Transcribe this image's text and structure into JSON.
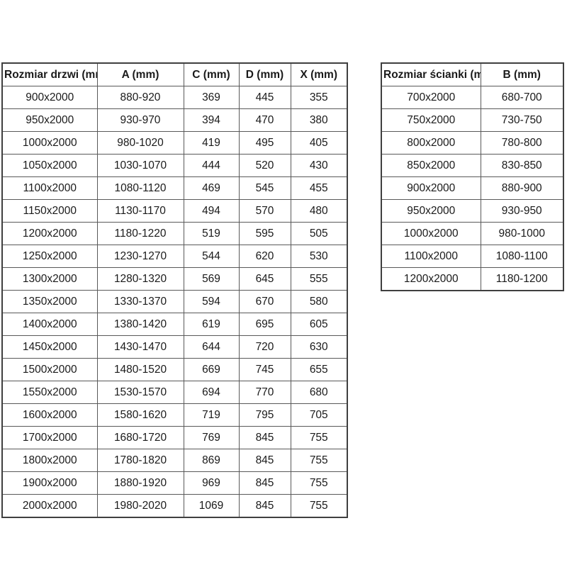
{
  "tables": {
    "doors": {
      "headers": [
        "Rozmiar drzwi (mm)",
        "A (mm)",
        "C (mm)",
        "D (mm)",
        "X (mm)"
      ],
      "rows": [
        [
          "900x2000",
          "880-920",
          "369",
          "445",
          "355"
        ],
        [
          "950x2000",
          "930-970",
          "394",
          "470",
          "380"
        ],
        [
          "1000x2000",
          "980-1020",
          "419",
          "495",
          "405"
        ],
        [
          "1050x2000",
          "1030-1070",
          "444",
          "520",
          "430"
        ],
        [
          "1100x2000",
          "1080-1120",
          "469",
          "545",
          "455"
        ],
        [
          "1150x2000",
          "1130-1170",
          "494",
          "570",
          "480"
        ],
        [
          "1200x2000",
          "1180-1220",
          "519",
          "595",
          "505"
        ],
        [
          "1250x2000",
          "1230-1270",
          "544",
          "620",
          "530"
        ],
        [
          "1300x2000",
          "1280-1320",
          "569",
          "645",
          "555"
        ],
        [
          "1350x2000",
          "1330-1370",
          "594",
          "670",
          "580"
        ],
        [
          "1400x2000",
          "1380-1420",
          "619",
          "695",
          "605"
        ],
        [
          "1450x2000",
          "1430-1470",
          "644",
          "720",
          "630"
        ],
        [
          "1500x2000",
          "1480-1520",
          "669",
          "745",
          "655"
        ],
        [
          "1550x2000",
          "1530-1570",
          "694",
          "770",
          "680"
        ],
        [
          "1600x2000",
          "1580-1620",
          "719",
          "795",
          "705"
        ],
        [
          "1700x2000",
          "1680-1720",
          "769",
          "845",
          "755"
        ],
        [
          "1800x2000",
          "1780-1820",
          "869",
          "845",
          "755"
        ],
        [
          "1900x2000",
          "1880-1920",
          "969",
          "845",
          "755"
        ],
        [
          "2000x2000",
          "1980-2020",
          "1069",
          "845",
          "755"
        ]
      ]
    },
    "walls": {
      "headers": [
        "Rozmiar ścianki (mm)",
        "B (mm)"
      ],
      "rows": [
        [
          "700x2000",
          "680-700"
        ],
        [
          "750x2000",
          "730-750"
        ],
        [
          "800x2000",
          "780-800"
        ],
        [
          "850x2000",
          "830-850"
        ],
        [
          "900x2000",
          "880-900"
        ],
        [
          "950x2000",
          "930-950"
        ],
        [
          "1000x2000",
          "980-1000"
        ],
        [
          "1100x2000",
          "1080-1100"
        ],
        [
          "1200x2000",
          "1180-1200"
        ]
      ]
    }
  },
  "colors": {
    "border_outer": "#3f3f3f",
    "border_inner": "#595959",
    "text": "#1a1a1a",
    "background": "#ffffff"
  }
}
